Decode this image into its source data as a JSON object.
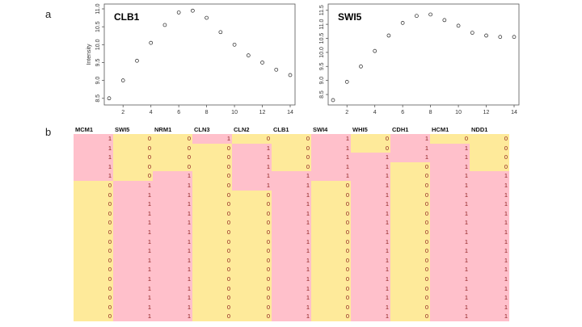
{
  "labels": {
    "a": "a",
    "b": "b"
  },
  "colors": {
    "one": "#ffc0cb",
    "zero": "#feea9a",
    "value_text": "#8a1a1a"
  },
  "chart_data": [
    {
      "type": "scatter",
      "title": "CLB1",
      "ylabel": "Intensity",
      "xlabel": "",
      "x": [
        1,
        2,
        3,
        4,
        5,
        6,
        7,
        8,
        9,
        10,
        11,
        12,
        13,
        14
      ],
      "y": [
        8.5,
        9.0,
        9.55,
        10.05,
        10.55,
        10.9,
        10.95,
        10.75,
        10.35,
        10.0,
        9.7,
        9.5,
        9.3,
        9.15
      ],
      "xlim": [
        1,
        14
      ],
      "ylim": [
        8.45,
        11.0
      ],
      "xticks": [
        2,
        4,
        6,
        8,
        10,
        12,
        14
      ],
      "yticks": [
        8.5,
        9.0,
        9.5,
        10.0,
        10.5,
        11.0
      ],
      "ytick_labels": [
        "8.5",
        "9.0",
        "9.5",
        "10.0",
        "10.5",
        "11.0"
      ]
    },
    {
      "type": "scatter",
      "title": "SWI5",
      "ylabel": "",
      "xlabel": "",
      "x": [
        1,
        2,
        3,
        4,
        5,
        6,
        7,
        8,
        9,
        10,
        11,
        12,
        13,
        14
      ],
      "y": [
        8.3,
        8.95,
        9.5,
        10.05,
        10.6,
        11.05,
        11.3,
        11.35,
        11.15,
        10.95,
        10.7,
        10.6,
        10.55,
        10.55
      ],
      "xlim": [
        1,
        14
      ],
      "ylim": [
        8.3,
        11.55
      ],
      "xticks": [
        2,
        4,
        6,
        8,
        10,
        12,
        14
      ],
      "yticks": [
        8.5,
        9.0,
        9.5,
        10.0,
        10.5,
        11.0,
        11.5
      ],
      "ytick_labels": [
        "8.5",
        "9.0",
        "9.5",
        "10.0",
        "10.5",
        "11.0",
        "11.5"
      ]
    }
  ],
  "table": {
    "columns": [
      "MCM1",
      "SWI5",
      "NRM1",
      "CLN3",
      "CLN2",
      "CLB1",
      "SWI4",
      "WHI5",
      "CDH1",
      "HCM1",
      "NDD1"
    ],
    "rows": [
      [
        1,
        0,
        0,
        1,
        0,
        0,
        1,
        0,
        1,
        0,
        0
      ],
      [
        1,
        0,
        0,
        0,
        1,
        0,
        1,
        0,
        1,
        1,
        0
      ],
      [
        1,
        0,
        0,
        0,
        1,
        0,
        1,
        1,
        1,
        1,
        0
      ],
      [
        1,
        0,
        0,
        0,
        1,
        0,
        1,
        1,
        0,
        1,
        0
      ],
      [
        1,
        0,
        1,
        0,
        1,
        1,
        1,
        1,
        0,
        1,
        1
      ],
      [
        0,
        1,
        1,
        0,
        1,
        1,
        0,
        1,
        0,
        1,
        1
      ],
      [
        0,
        1,
        1,
        0,
        0,
        1,
        0,
        1,
        0,
        1,
        1
      ],
      [
        0,
        1,
        1,
        0,
        0,
        1,
        0,
        1,
        0,
        1,
        1
      ],
      [
        0,
        1,
        1,
        0,
        0,
        1,
        0,
        1,
        0,
        1,
        1
      ],
      [
        0,
        1,
        1,
        0,
        0,
        1,
        0,
        1,
        0,
        1,
        1
      ],
      [
        0,
        1,
        1,
        0,
        0,
        1,
        0,
        1,
        0,
        1,
        1
      ],
      [
        0,
        1,
        1,
        0,
        0,
        1,
        0,
        1,
        0,
        1,
        1
      ],
      [
        0,
        1,
        1,
        0,
        0,
        1,
        0,
        1,
        0,
        1,
        1
      ],
      [
        0,
        1,
        1,
        0,
        0,
        1,
        0,
        1,
        0,
        1,
        1
      ],
      [
        0,
        1,
        1,
        0,
        0,
        1,
        0,
        1,
        0,
        1,
        1
      ],
      [
        0,
        1,
        1,
        0,
        0,
        1,
        0,
        1,
        0,
        1,
        1
      ],
      [
        0,
        1,
        1,
        0,
        0,
        1,
        0,
        1,
        0,
        1,
        1
      ],
      [
        0,
        1,
        1,
        0,
        0,
        1,
        0,
        1,
        0,
        1,
        1
      ],
      [
        0,
        1,
        1,
        0,
        0,
        1,
        0,
        1,
        0,
        1,
        1
      ],
      [
        0,
        1,
        1,
        0,
        0,
        1,
        0,
        1,
        0,
        1,
        1
      ]
    ]
  }
}
